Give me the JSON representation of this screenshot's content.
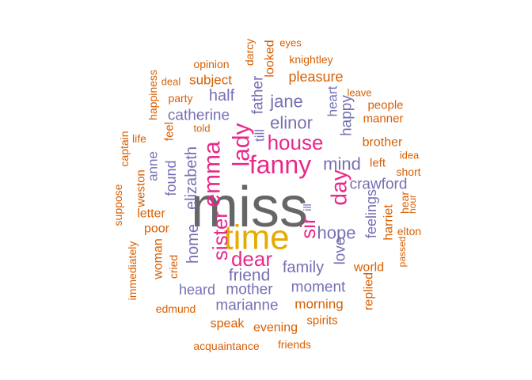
{
  "palette": {
    "orange": "#d95f02",
    "purple": "#7570b3",
    "magenta": "#e7298a",
    "gold": "#e6ab02",
    "gray": "#666666"
  },
  "chart_data": {
    "type": "wordcloud",
    "title": "",
    "words": [
      {
        "text": "miss",
        "weight": 48,
        "color": "gray",
        "rotated": false
      },
      {
        "text": "time",
        "weight": 38,
        "color": "gold",
        "rotated": false
      },
      {
        "text": "fanny",
        "weight": 30,
        "color": "magenta",
        "rotated": false
      },
      {
        "text": "emma",
        "weight": 28,
        "color": "magenta",
        "rotated": true
      },
      {
        "text": "dear",
        "weight": 26,
        "color": "magenta",
        "rotated": false
      },
      {
        "text": "lady",
        "weight": 26,
        "color": "magenta",
        "rotated": true
      },
      {
        "text": "sister",
        "weight": 24,
        "color": "magenta",
        "rotated": true
      },
      {
        "text": "sir",
        "weight": 24,
        "color": "magenta",
        "rotated": true
      },
      {
        "text": "day",
        "weight": 24,
        "color": "magenta",
        "rotated": true
      },
      {
        "text": "house",
        "weight": 24,
        "color": "magenta",
        "rotated": false
      },
      {
        "text": "elizabeth",
        "weight": 20,
        "color": "purple",
        "rotated": true
      },
      {
        "text": "elinor",
        "weight": 20,
        "color": "purple",
        "rotated": false
      },
      {
        "text": "jane",
        "weight": 20,
        "color": "purple",
        "rotated": false
      },
      {
        "text": "mind",
        "weight": 20,
        "color": "purple",
        "rotated": false
      },
      {
        "text": "hope",
        "weight": 20,
        "color": "purple",
        "rotated": false
      },
      {
        "text": "family",
        "weight": 20,
        "color": "purple",
        "rotated": false
      },
      {
        "text": "friend",
        "weight": 20,
        "color": "purple",
        "rotated": false
      },
      {
        "text": "home",
        "weight": 20,
        "color": "purple",
        "rotated": true
      },
      {
        "text": "catherine",
        "weight": 18,
        "color": "purple",
        "rotated": false
      },
      {
        "text": "father",
        "weight": 18,
        "color": "purple",
        "rotated": true
      },
      {
        "text": "half",
        "weight": 18,
        "color": "purple",
        "rotated": false
      },
      {
        "text": "mother",
        "weight": 18,
        "color": "purple",
        "rotated": false
      },
      {
        "text": "moment",
        "weight": 18,
        "color": "purple",
        "rotated": false
      },
      {
        "text": "marianne",
        "weight": 18,
        "color": "purple",
        "rotated": false
      },
      {
        "text": "crawford",
        "weight": 18,
        "color": "purple",
        "rotated": false
      },
      {
        "text": "love",
        "weight": 18,
        "color": "purple",
        "rotated": true
      },
      {
        "text": "feelings",
        "weight": 18,
        "color": "purple",
        "rotated": true
      },
      {
        "text": "happy",
        "weight": 17,
        "color": "purple",
        "rotated": true
      },
      {
        "text": "heard",
        "weight": 17,
        "color": "purple",
        "rotated": false
      },
      {
        "text": "found",
        "weight": 17,
        "color": "purple",
        "rotated": true
      },
      {
        "text": "heart",
        "weight": 16,
        "color": "purple",
        "rotated": true
      },
      {
        "text": "anne",
        "weight": 16,
        "color": "purple",
        "rotated": true
      },
      {
        "text": "till",
        "weight": 16,
        "color": "purple",
        "rotated": true
      },
      {
        "text": "ill",
        "weight": 15,
        "color": "purple",
        "rotated": true
      },
      {
        "text": "pleasure",
        "weight": 16,
        "color": "orange",
        "rotated": false
      },
      {
        "text": "morning",
        "weight": 16,
        "color": "orange",
        "rotated": false
      },
      {
        "text": "subject",
        "weight": 16,
        "color": "orange",
        "rotated": false
      },
      {
        "text": "looked",
        "weight": 15,
        "color": "orange",
        "rotated": true
      },
      {
        "text": "brother",
        "weight": 15,
        "color": "orange",
        "rotated": false
      },
      {
        "text": "letter",
        "weight": 15,
        "color": "orange",
        "rotated": false
      },
      {
        "text": "poor",
        "weight": 15,
        "color": "orange",
        "rotated": false
      },
      {
        "text": "woman",
        "weight": 15,
        "color": "orange",
        "rotated": true
      },
      {
        "text": "world",
        "weight": 15,
        "color": "orange",
        "rotated": false
      },
      {
        "text": "harriet",
        "weight": 15,
        "color": "orange",
        "rotated": true
      },
      {
        "text": "replied",
        "weight": 15,
        "color": "orange",
        "rotated": true
      },
      {
        "text": "speak",
        "weight": 15,
        "color": "orange",
        "rotated": false
      },
      {
        "text": "evening",
        "weight": 15,
        "color": "orange",
        "rotated": false
      },
      {
        "text": "spirits",
        "weight": 15,
        "color": "orange",
        "rotated": false
      },
      {
        "text": "people",
        "weight": 15,
        "color": "orange",
        "rotated": false
      },
      {
        "text": "manner",
        "weight": 15,
        "color": "orange",
        "rotated": false
      },
      {
        "text": "feel",
        "weight": 15,
        "color": "orange",
        "rotated": true
      },
      {
        "text": "left",
        "weight": 15,
        "color": "orange",
        "rotated": false
      },
      {
        "text": "weston",
        "weight": 15,
        "color": "orange",
        "rotated": true
      },
      {
        "text": "knightley",
        "weight": 14,
        "color": "orange",
        "rotated": false
      },
      {
        "text": "opinion",
        "weight": 14,
        "color": "orange",
        "rotated": false
      },
      {
        "text": "darcy",
        "weight": 14,
        "color": "orange",
        "rotated": true
      },
      {
        "text": "happiness",
        "weight": 14,
        "color": "orange",
        "rotated": true
      },
      {
        "text": "party",
        "weight": 14,
        "color": "orange",
        "rotated": false
      },
      {
        "text": "cried",
        "weight": 14,
        "color": "orange",
        "rotated": true
      },
      {
        "text": "hear",
        "weight": 14,
        "color": "orange",
        "rotated": true
      },
      {
        "text": "short",
        "weight": 14,
        "color": "orange",
        "rotated": false
      },
      {
        "text": "edmund",
        "weight": 14,
        "color": "orange",
        "rotated": false
      },
      {
        "text": "acquaintance",
        "weight": 14,
        "color": "orange",
        "rotated": false
      },
      {
        "text": "friends",
        "weight": 14,
        "color": "orange",
        "rotated": false
      },
      {
        "text": "elton",
        "weight": 14,
        "color": "orange",
        "rotated": false
      },
      {
        "text": "life",
        "weight": 13,
        "color": "orange",
        "rotated": false
      },
      {
        "text": "captain",
        "weight": 13,
        "color": "orange",
        "rotated": true
      },
      {
        "text": "suppose",
        "weight": 13,
        "color": "orange",
        "rotated": true
      },
      {
        "text": "immediately",
        "weight": 13,
        "color": "orange",
        "rotated": true
      },
      {
        "text": "told",
        "weight": 13,
        "color": "orange",
        "rotated": false
      },
      {
        "text": "eyes",
        "weight": 13,
        "color": "orange",
        "rotated": false
      },
      {
        "text": "deal",
        "weight": 13,
        "color": "orange",
        "rotated": false
      },
      {
        "text": "leave",
        "weight": 13,
        "color": "orange",
        "rotated": false
      },
      {
        "text": "idea",
        "weight": 13,
        "color": "orange",
        "rotated": false
      },
      {
        "text": "hour",
        "weight": 12,
        "color": "orange",
        "rotated": true
      },
      {
        "text": "passed",
        "weight": 12,
        "color": "orange",
        "rotated": true
      }
    ]
  }
}
